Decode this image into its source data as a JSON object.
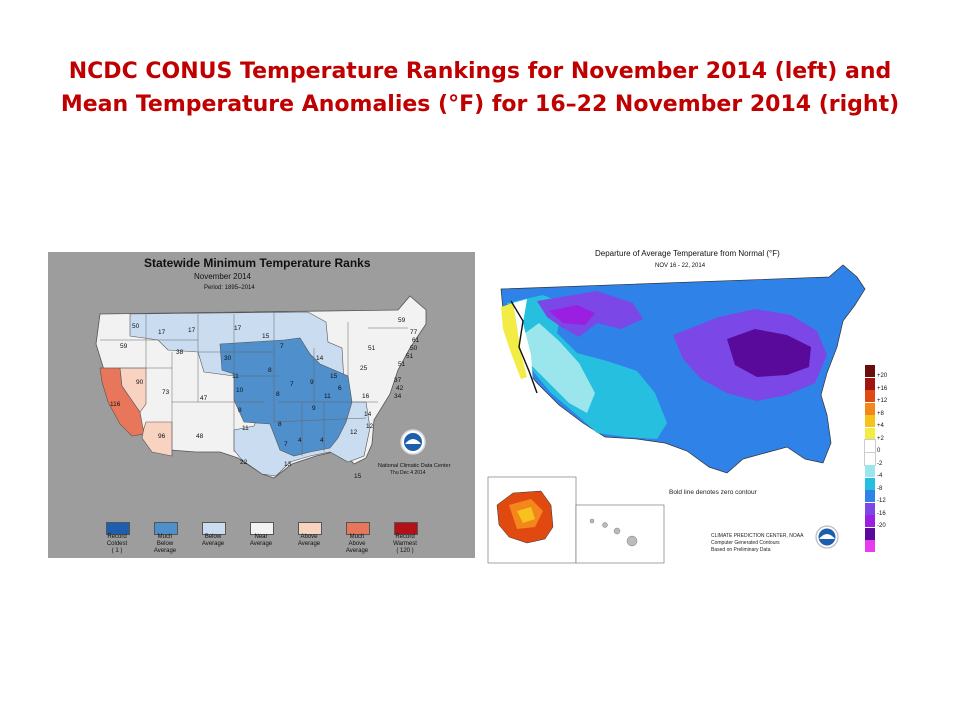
{
  "slide": {
    "title_line1": "NCDC CONUS Temperature Rankings for November 2014 (left) and",
    "title_line2": "Mean Temperature Anomalies (°F) for 16–22 November 2014 (right)"
  },
  "chart_data": [
    {
      "type": "other",
      "map_kind": "choropleth",
      "title": "Statewide Minimum Temperature Ranks",
      "subtitle": "November 2014",
      "period": "Period: 1895–2014",
      "credit_line1": "National Climatic Data Center",
      "credit_line2": "Thu Dec 4 2014",
      "legend": [
        {
          "label_lines": [
            "Record",
            "Coldest",
            "( 1 )"
          ],
          "color": "#1d5fae"
        },
        {
          "label_lines": [
            "Much",
            "Below",
            "Average"
          ],
          "color": "#4f8fcb"
        },
        {
          "label_lines": [
            "Below",
            "Average"
          ],
          "color": "#c9dcf0"
        },
        {
          "label_lines": [
            "Near",
            "Average"
          ],
          "color": "#f2f2f2"
        },
        {
          "label_lines": [
            "Above",
            "Average"
          ],
          "color": "#f9d3c2"
        },
        {
          "label_lines": [
            "Much",
            "Above",
            "Average"
          ],
          "color": "#e8765a"
        },
        {
          "label_lines": [
            "Record",
            "Warmest",
            "( 120 )"
          ],
          "color": "#b3101a"
        }
      ],
      "state_ranks": [
        {
          "state": "WA",
          "rank": "50"
        },
        {
          "state": "ID",
          "rank": "17"
        },
        {
          "state": "MT",
          "rank": "17"
        },
        {
          "state": "ND",
          "rank": "17"
        },
        {
          "state": "MN",
          "rank": "15"
        },
        {
          "state": "OR",
          "rank": "59"
        },
        {
          "state": "WY",
          "rank": "38"
        },
        {
          "state": "SD",
          "rank": "30"
        },
        {
          "state": "NE",
          "rank": "11"
        },
        {
          "state": "WI",
          "rank": "7"
        },
        {
          "state": "MI",
          "rank": "14"
        },
        {
          "state": "NV",
          "rank": "90"
        },
        {
          "state": "UT",
          "rank": "73"
        },
        {
          "state": "CO",
          "rank": "47"
        },
        {
          "state": "KS",
          "rank": "10"
        },
        {
          "state": "IA",
          "rank": "8"
        },
        {
          "state": "IL",
          "rank": "7"
        },
        {
          "state": "IN",
          "rank": "9"
        },
        {
          "state": "OH",
          "rank": "15"
        },
        {
          "state": "PA",
          "rank": "25"
        },
        {
          "state": "NY",
          "rank": "51"
        },
        {
          "state": "ME",
          "rank": "59"
        },
        {
          "state": "VT",
          "rank": "77"
        },
        {
          "state": "NH",
          "rank": "61"
        },
        {
          "state": "MA",
          "rank": "50"
        },
        {
          "state": "RI",
          "rank": "51"
        },
        {
          "state": "CT",
          "rank": "51"
        },
        {
          "state": "NJ",
          "rank": "37"
        },
        {
          "state": "DE",
          "rank": "42"
        },
        {
          "state": "MD",
          "rank": "34"
        },
        {
          "state": "CA",
          "rank": "116"
        },
        {
          "state": "AZ",
          "rank": "96"
        },
        {
          "state": "NM",
          "rank": "48"
        },
        {
          "state": "OK",
          "rank": "8"
        },
        {
          "state": "MO",
          "rank": "8"
        },
        {
          "state": "KY",
          "rank": "11"
        },
        {
          "state": "WV",
          "rank": "6"
        },
        {
          "state": "VA",
          "rank": "16"
        },
        {
          "state": "TN",
          "rank": "9"
        },
        {
          "state": "NC",
          "rank": "14"
        },
        {
          "state": "TX",
          "rank": "11"
        },
        {
          "state": "AR",
          "rank": "8"
        },
        {
          "state": "MS",
          "rank": "4"
        },
        {
          "state": "AL",
          "rank": "4"
        },
        {
          "state": "GA",
          "rank": "12"
        },
        {
          "state": "SC",
          "rank": "12"
        },
        {
          "state": "LA",
          "rank": "7"
        },
        {
          "state": "TX-S",
          "rank": "22"
        },
        {
          "state": "LA-S",
          "rank": "13"
        },
        {
          "state": "FL",
          "rank": "15"
        }
      ]
    },
    {
      "type": "heatmap",
      "map_kind": "contour",
      "title": "Departure of Average Temperature from Normal (°F)",
      "subtitle": "NOV 16 - 22, 2014",
      "note": "Bold line denotes zero contour",
      "credit_line1": "CLIMATE PREDICTION CENTER, NOAA",
      "credit_line2": "Computer Generated Contours",
      "credit_line3": "Based on Preliminary Data",
      "color_scale": [
        {
          "label": "+20",
          "color": "#6b0d0d"
        },
        {
          "label": "+16",
          "color": "#a3140e"
        },
        {
          "label": "+12",
          "color": "#e04a10"
        },
        {
          "label": "+8",
          "color": "#f4871c"
        },
        {
          "label": "+4",
          "color": "#f6c21c"
        },
        {
          "label": "+2",
          "color": "#f2ec44"
        },
        {
          "label": "0",
          "color": "#ffffff"
        },
        {
          "label": "-2",
          "color": "#ffffff"
        },
        {
          "label": "-4",
          "color": "#9ae6ec"
        },
        {
          "label": "-8",
          "color": "#27bfe0"
        },
        {
          "label": "-12",
          "color": "#2f82e8"
        },
        {
          "label": "-16",
          "color": "#7b47e6"
        },
        {
          "label": "-20",
          "color": "#9b1fe0"
        },
        {
          "label": "",
          "color": "#5a0a9a"
        },
        {
          "label": "",
          "color": "#e63cf0"
        }
      ]
    }
  ]
}
